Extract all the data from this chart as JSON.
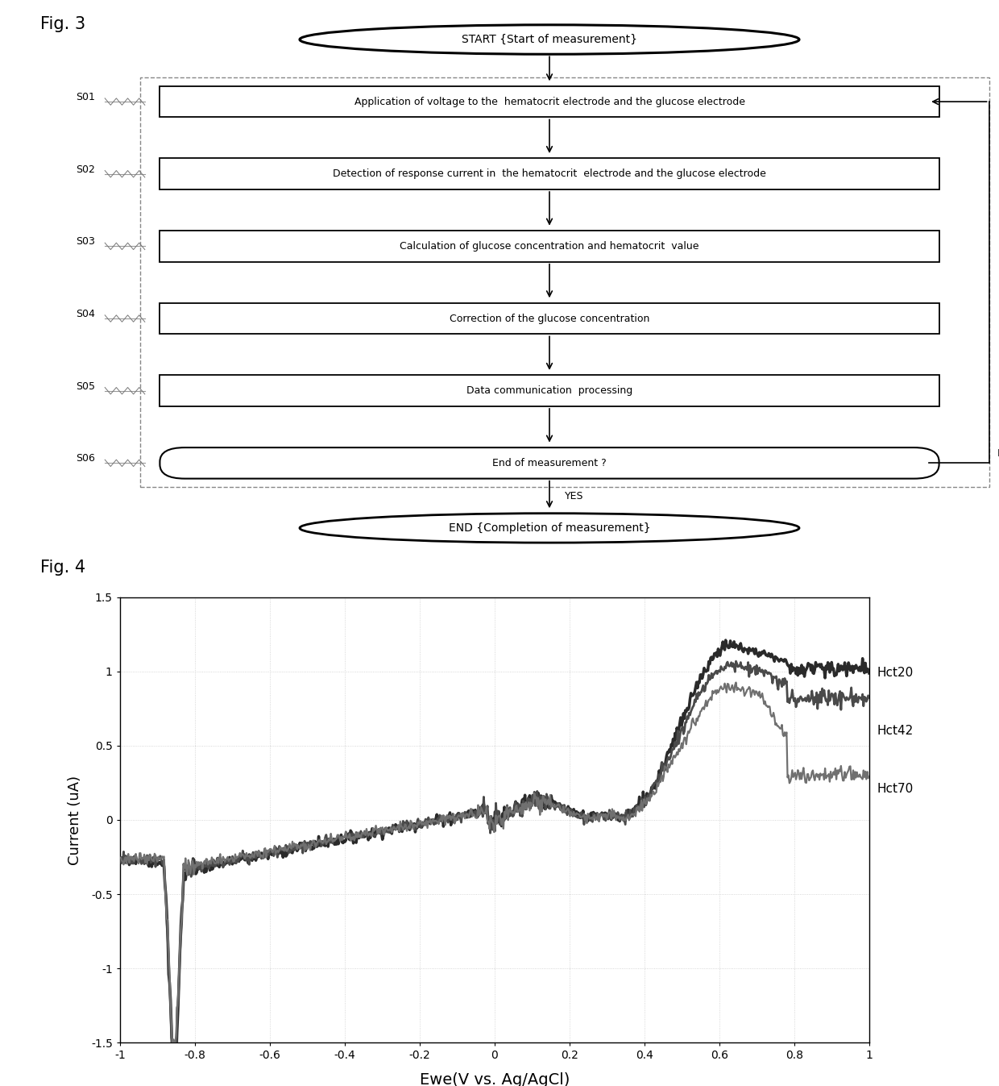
{
  "fig3_title": "Fig. 3",
  "fig4_title": "Fig. 4",
  "flowchart": {
    "start_label": "START {Start of measurement}",
    "end_label": "END {Completion of measurement}",
    "steps": [
      {
        "id": "S01",
        "text": "Application of voltage to the  hematocrit electrode and the glucose electrode"
      },
      {
        "id": "S02",
        "text": "Detection of response current in  the hematocrit  electrode and the glucose electrode"
      },
      {
        "id": "S03",
        "text": "Calculation of glucose concentration and hematocrit  value"
      },
      {
        "id": "S04",
        "text": "Correction of the glucose concentration"
      },
      {
        "id": "S05",
        "text": "Data communication  processing"
      },
      {
        "id": "S06",
        "text": "End of measurement ?",
        "decision": true
      }
    ],
    "no_label": "NO",
    "yes_label": "YES"
  },
  "graph": {
    "xlabel": "Ewe(V vs. Ag/AgCl)",
    "ylabel": "Current (uA)",
    "xlim": [
      -1,
      1
    ],
    "ylim": [
      -1.5,
      1.5
    ],
    "xticks": [
      -1,
      -0.8,
      -0.6,
      -0.4,
      -0.2,
      0,
      0.2,
      0.4,
      0.6,
      0.8,
      1
    ],
    "yticks": [
      -1.5,
      -1,
      -0.5,
      0,
      0.5,
      1,
      1.5
    ],
    "ytick_labels": [
      "-1.5",
      "-1",
      "-0.5",
      "0",
      "0.5",
      "1",
      "1.5"
    ],
    "xtick_labels": [
      "-1",
      "-0.8",
      "-0.6",
      "-0.4",
      "-0.2",
      "0",
      "0.2",
      "0.4",
      "0.6",
      "0.8",
      "1"
    ],
    "legend_labels": [
      "Hct20",
      "Hct42",
      "Hct70"
    ],
    "colors": [
      "#2a2a2a",
      "#4a4a4a",
      "#707070"
    ],
    "lws": [
      2.5,
      2.0,
      1.6
    ]
  }
}
